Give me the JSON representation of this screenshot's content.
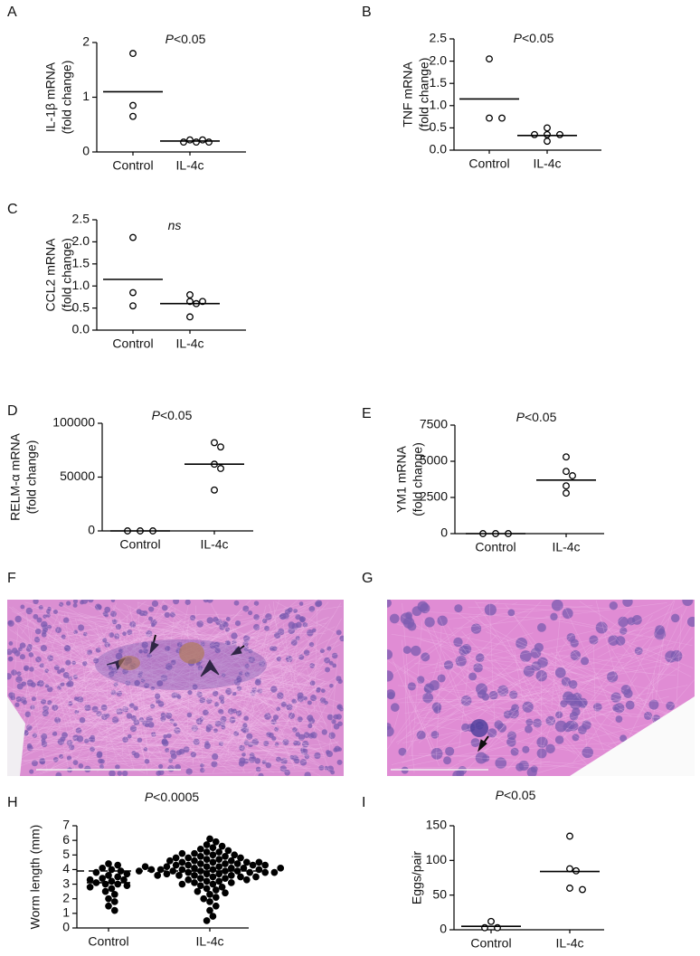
{
  "chart_data": [
    {
      "type": "dot",
      "label": "A",
      "annotation": "P<0.05",
      "ylabel": [
        "IL-1β mRNA",
        "(fold change)"
      ],
      "categories": [
        "Control",
        "IL-4c"
      ],
      "marker": "open",
      "color": "#000000",
      "values": [
        [
          1.8,
          0.85,
          0.65
        ],
        [
          0.22,
          0.18,
          0.18,
          0.18,
          0.22
        ]
      ],
      "means": [
        1.1,
        0.2
      ],
      "ylim": [
        0,
        2
      ],
      "yticks": [
        0,
        1,
        2
      ]
    },
    {
      "type": "dot",
      "label": "B",
      "annotation": "P<0.05",
      "ylabel": [
        "TNF mRNA",
        "(fold change)"
      ],
      "categories": [
        "Control",
        "IL-4c"
      ],
      "marker": "open",
      "color": "#000000",
      "values": [
        [
          2.05,
          0.72,
          0.72
        ],
        [
          0.5,
          0.35,
          0.35,
          0.35,
          0.2
        ]
      ],
      "means": [
        1.15,
        0.33
      ],
      "ylim": [
        0,
        2.5
      ],
      "yticks": [
        {
          "value": 0,
          "label": "0.0"
        },
        0.5,
        {
          "value": 1,
          "label": "1.0"
        },
        1.5,
        {
          "value": 2,
          "label": "2.0"
        },
        2.5
      ]
    },
    {
      "type": "dot",
      "label": "C",
      "annotation": "ns",
      "ylabel": [
        "CCL2 mRNA",
        "(fold change)"
      ],
      "categories": [
        "Control",
        "IL-4c"
      ],
      "marker": "open",
      "color": "#000000",
      "values": [
        [
          2.1,
          0.85,
          0.55
        ],
        [
          0.8,
          0.65,
          0.65,
          0.6,
          0.3
        ]
      ],
      "means": [
        1.15,
        0.6
      ],
      "ylim": [
        0,
        2.5
      ],
      "yticks": [
        {
          "value": 0,
          "label": "0.0"
        },
        0.5,
        {
          "value": 1,
          "label": "1.0"
        },
        1.5,
        {
          "value": 2,
          "label": "2.0"
        },
        2.5
      ]
    },
    {
      "type": "dot",
      "label": "D",
      "annotation": "P<0.05",
      "ylabel": [
        "RELM-α mRNA",
        "(fold change)"
      ],
      "categories": [
        "Control",
        "IL-4c"
      ],
      "marker": "open",
      "color": "#000000",
      "values": [
        [
          0,
          0,
          0
        ],
        [
          82000,
          78000,
          62000,
          58000,
          38000
        ]
      ],
      "means": [
        0,
        62000
      ],
      "ylim": [
        0,
        100000
      ],
      "yticks": [
        0,
        50000,
        100000
      ]
    },
    {
      "type": "dot",
      "label": "E",
      "annotation": "P<0.05",
      "ylabel": [
        "YM1 mRNA",
        "(fold change)"
      ],
      "categories": [
        "Control",
        "IL-4c"
      ],
      "marker": "open",
      "color": "#000000",
      "values": [
        [
          0,
          0,
          0
        ],
        [
          5300,
          4300,
          4000,
          3300,
          2800
        ]
      ],
      "means": [
        0,
        3700
      ],
      "ylim": [
        0,
        7500
      ],
      "yticks": [
        0,
        2500,
        5000,
        7500
      ]
    },
    {
      "type": "dot",
      "label": "H",
      "annotation": "P<0.0005",
      "ylabel": [
        "Worm length (mm)"
      ],
      "categories": [
        "Control",
        "IL-4c"
      ],
      "marker": "filled",
      "color": "#000000",
      "values": [
        [
          4.4,
          4.3,
          4.1,
          4.0,
          3.9,
          3.8,
          3.6,
          3.5,
          3.4,
          3.3,
          3.2,
          3.1,
          3.0,
          3.0,
          2.9,
          2.8,
          2.7,
          2.5,
          2.3,
          2.0,
          1.8,
          1.5,
          1.2,
          3.7,
          3.3
        ],
        [
          6.1,
          5.9,
          5.7,
          5.6,
          5.5,
          5.4,
          5.3,
          5.2,
          5.2,
          5.1,
          5.0,
          5.0,
          4.9,
          4.9,
          4.8,
          4.8,
          4.7,
          4.7,
          4.6,
          4.6,
          4.5,
          4.5,
          4.5,
          4.4,
          4.4,
          4.4,
          4.3,
          4.3,
          4.3,
          4.2,
          4.2,
          4.2,
          4.1,
          4.1,
          4.1,
          4.0,
          4.0,
          4.0,
          4.0,
          3.9,
          3.9,
          3.9,
          3.9,
          3.8,
          3.8,
          3.8,
          3.7,
          3.7,
          3.7,
          3.6,
          3.6,
          3.6,
          3.5,
          3.5,
          3.5,
          3.4,
          3.4,
          3.3,
          3.3,
          3.2,
          3.2,
          3.1,
          3.1,
          3.0,
          3.0,
          2.9,
          2.8,
          2.7,
          2.6,
          2.5,
          2.4,
          2.3,
          2.1,
          2.0,
          1.8,
          1.5,
          1.2,
          0.8,
          0.5,
          4.6,
          4.3,
          4.0,
          3.8,
          4.2,
          4.5,
          4.8,
          5.1,
          3.6,
          3.9,
          4.1
        ]
      ],
      "means": [
        3.1,
        3.9
      ],
      "hline": 3.9,
      "ylim": [
        0,
        7
      ],
      "yticks": [
        0,
        1,
        2,
        3,
        4,
        5,
        6,
        7
      ]
    },
    {
      "type": "dot",
      "label": "I",
      "annotation": "P<0.05",
      "ylabel": [
        "Eggs/pair"
      ],
      "categories": [
        "Control",
        "IL-4c"
      ],
      "marker": "open",
      "color": "#000000",
      "values": [
        [
          12,
          3,
          3
        ],
        [
          135,
          88,
          85,
          60,
          58
        ]
      ],
      "means": [
        5,
        84
      ],
      "ylim": [
        0,
        150
      ],
      "yticks": [
        0,
        50,
        100,
        150
      ]
    }
  ],
  "images": [
    {
      "label": "F"
    },
    {
      "label": "G"
    }
  ]
}
